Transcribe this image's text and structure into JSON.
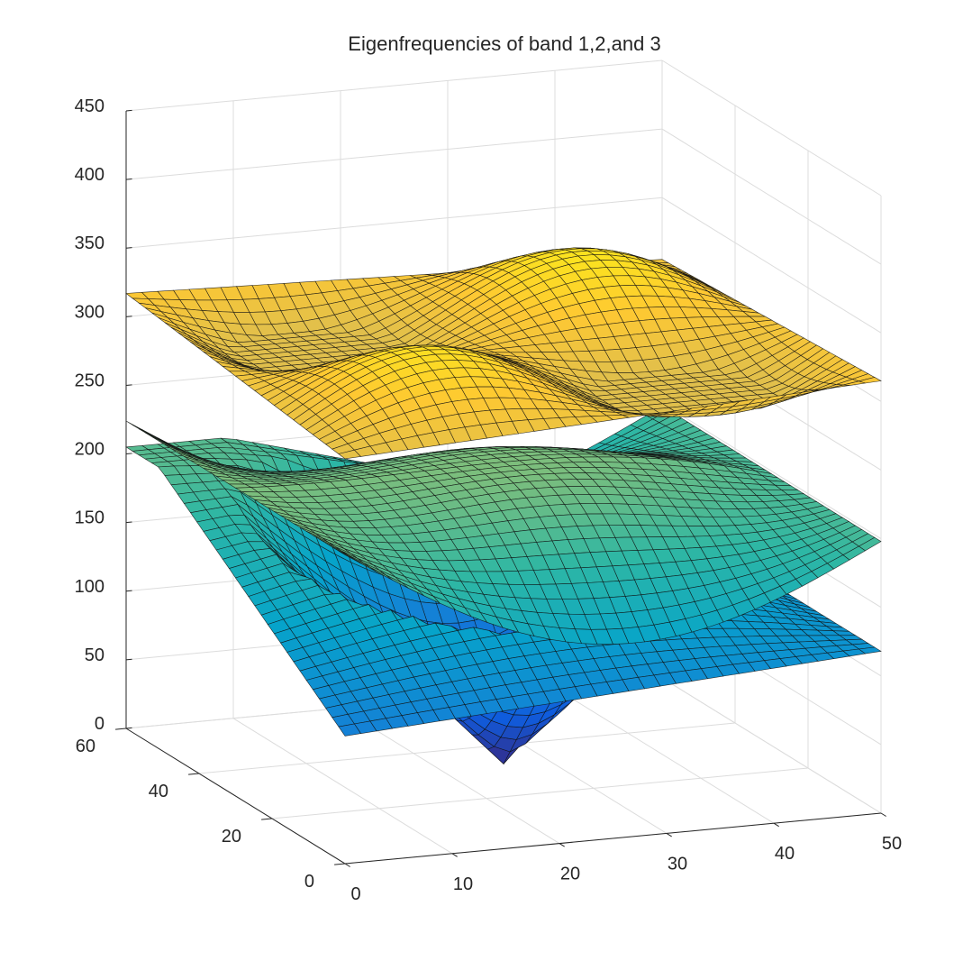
{
  "chart_data": {
    "type": "surface",
    "title": "Eigenfrequencies of band 1,2,and 3",
    "xlabel": "",
    "ylabel": "",
    "zlabel": "",
    "xlim": [
      0,
      50
    ],
    "ylim": [
      0,
      60
    ],
    "zlim": [
      0,
      450
    ],
    "xticks": [
      "0",
      "10",
      "20",
      "30",
      "40",
      "50"
    ],
    "yticks": [
      "0",
      "20",
      "40",
      "60"
    ],
    "zticks": [
      "0",
      "50",
      "100",
      "150",
      "200",
      "250",
      "300",
      "350",
      "400",
      "450"
    ],
    "grid": true,
    "colormap": "parula",
    "colormap_colors": [
      "#352a87",
      "#0f5cdd",
      "#1481d6",
      "#06a4ca",
      "#2eb7a4",
      "#87bf77",
      "#d1bb59",
      "#fec832",
      "#f9fb0e"
    ],
    "series": [
      {
        "name": "",
        "z_corners": {
          "x0_y0": 93,
          "x50_y0": 118,
          "x0_y60": 225,
          "x50_y60": 118
        },
        "z_min": 5,
        "z_min_at": [
          25,
          30
        ],
        "z_center": 5
      },
      {
        "name": "",
        "z_corners": {
          "x0_y0": 225,
          "x50_y0": 198,
          "x0_y60": 224,
          "x50_y60": 198
        },
        "z_max": 225,
        "z_center": 225
      },
      {
        "name": "",
        "z_corners": {
          "x0_y0": 330,
          "x50_y0": 350,
          "x0_y60": 352,
          "x50_y60": 340
        },
        "z_max": 365,
        "z_min": 290
      }
    ]
  }
}
